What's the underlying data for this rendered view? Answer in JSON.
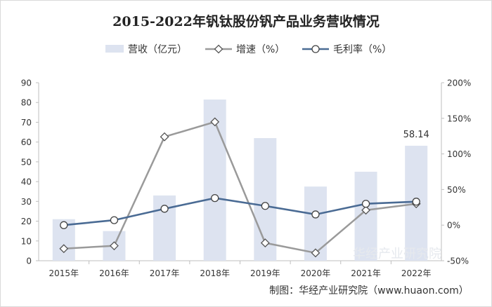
{
  "chart_data": {
    "type": "bar",
    "title": "2015-2022年钒钛股份钒产品业务营收情况",
    "categories": [
      "2015年",
      "2016年",
      "2017年",
      "2018年",
      "2019年",
      "2020年",
      "2021年",
      "2022年"
    ],
    "series": [
      {
        "name": "营收（亿元）",
        "type": "bar",
        "axis": "left",
        "color": "#dde3f0",
        "values": [
          21,
          15,
          33,
          81.5,
          62,
          37.5,
          45,
          58.14
        ]
      },
      {
        "name": "增速（%）",
        "type": "line",
        "axis": "right",
        "color": "#9a9a9a",
        "values": [
          -33,
          -29,
          124,
          145,
          -25,
          -39,
          21,
          30
        ]
      },
      {
        "name": "毛利率（%）",
        "type": "line",
        "axis": "right",
        "color": "#4a6b94",
        "values": [
          0,
          7,
          23,
          38,
          27,
          15,
          30,
          33
        ]
      }
    ],
    "left_axis": {
      "ylim": [
        0,
        90
      ],
      "ticks": [
        0,
        10,
        20,
        30,
        40,
        50,
        60,
        70,
        80,
        90
      ]
    },
    "right_axis": {
      "ylim": [
        -50,
        200
      ],
      "ticks": [
        "-50%",
        "0%",
        "50%",
        "100%",
        "150%",
        "200%"
      ]
    },
    "data_labels": [
      {
        "category_index": 7,
        "text": "58.14"
      }
    ],
    "legend_position": "top-center",
    "grid": false,
    "source": "制图：华经产业研究院（www.huaon.com）",
    "watermark": "华经产业研究院"
  }
}
